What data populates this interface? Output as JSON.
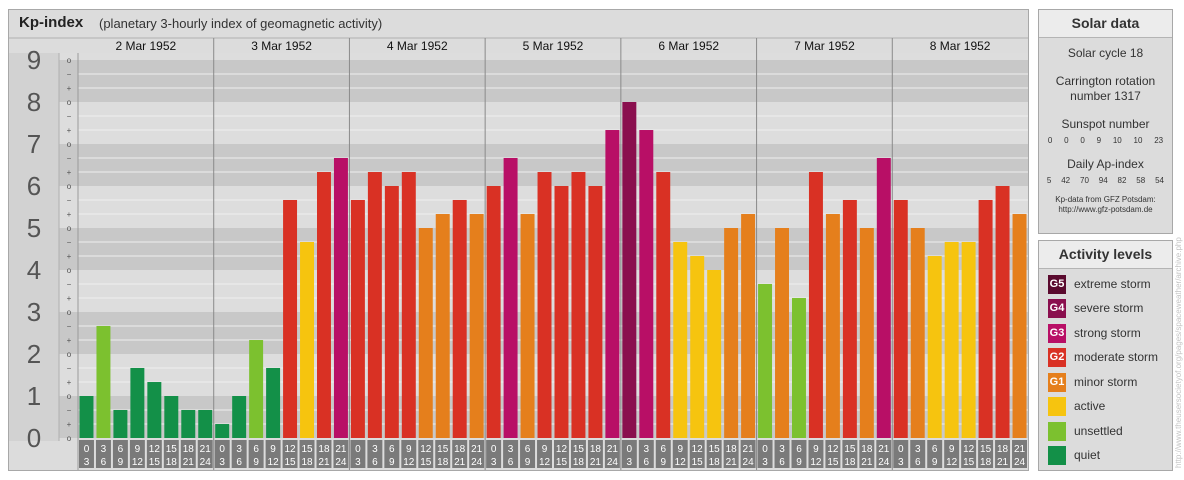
{
  "title": "Kp-index",
  "subtitle": "(planetary 3-hourly index of geomagnetic activity)",
  "chart_data": {
    "type": "bar",
    "ylim": [
      0,
      9
    ],
    "y_major_ticks": [
      "0",
      "1",
      "2",
      "3",
      "4",
      "5",
      "6",
      "7",
      "8",
      "9"
    ],
    "y_minor_ticks": [
      "o",
      "+",
      "−"
    ],
    "days": [
      "2 Mar 1952",
      "3 Mar 1952",
      "4 Mar 1952",
      "5 Mar 1952",
      "6 Mar 1952",
      "7 Mar 1952",
      "8 Mar 1952"
    ],
    "interval_start_labels": [
      "0",
      "3",
      "6",
      "9",
      "12",
      "15",
      "18",
      "21"
    ],
    "interval_end_labels": [
      "3",
      "6",
      "9",
      "12",
      "15",
      "18",
      "21",
      "24"
    ],
    "values": [
      1.0,
      2.667,
      0.667,
      1.667,
      1.333,
      1.0,
      0.667,
      0.667,
      0.333,
      1.0,
      2.333,
      1.667,
      5.667,
      4.667,
      6.333,
      6.667,
      5.667,
      6.333,
      6.0,
      6.333,
      5.0,
      5.333,
      5.667,
      5.333,
      6.0,
      6.667,
      5.333,
      6.333,
      6.0,
      6.333,
      6.0,
      7.333,
      8.0,
      7.333,
      6.333,
      4.667,
      4.333,
      4.0,
      5.0,
      5.333,
      3.667,
      5.0,
      3.333,
      6.333,
      5.333,
      5.667,
      5.0,
      6.667,
      5.667,
      5.0,
      4.333,
      4.667,
      4.667,
      5.667,
      6.0,
      5.333
    ],
    "colors": {
      "G5": "#5a0a2e",
      "G4": "#8a0f4e",
      "G3": "#b80f66",
      "G2": "#d93124",
      "G1": "#e57f1c",
      "active": "#f6c40f",
      "unsettled": "#7cc12f",
      "quiet": "#139048",
      "chart_bg": "#dcdcdc",
      "band_dark": "#c8c8c8",
      "band_light": "#dddddd",
      "label_bg": "#7a7a7a"
    }
  },
  "solar_data": {
    "heading": "Solar data",
    "cycle": "Solar cycle 18",
    "carrington_line1": "Carrington rotation",
    "carrington_line2": "number 1317",
    "sunspot_label": "Sunspot number",
    "sunspot_values": [
      "0",
      "0",
      "0",
      "9",
      "10",
      "10",
      "23"
    ],
    "ap_label": "Daily Ap-index",
    "ap_values": [
      "5",
      "42",
      "70",
      "94",
      "82",
      "58",
      "54"
    ],
    "source_line1": "Kp-data from GFZ Potsdam:",
    "source_line2": "http://www.gfz-potsdam.de"
  },
  "activity_levels": {
    "heading": "Activity levels",
    "items": [
      {
        "code": "G5",
        "label": "extreme storm",
        "color": "#5a0a2e"
      },
      {
        "code": "G4",
        "label": "severe storm",
        "color": "#8a0f4e"
      },
      {
        "code": "G3",
        "label": "strong storm",
        "color": "#b80f66"
      },
      {
        "code": "G2",
        "label": "moderate storm",
        "color": "#d93124"
      },
      {
        "code": "G1",
        "label": "minor storm",
        "color": "#e57f1c"
      },
      {
        "code": "",
        "label": "active",
        "color": "#f6c40f"
      },
      {
        "code": "",
        "label": "unsettled",
        "color": "#7cc12f"
      },
      {
        "code": "",
        "label": "quiet",
        "color": "#139048"
      }
    ]
  },
  "watermark": "http://www.theusersocietyof.org/pages/spaceweather/archive.php"
}
